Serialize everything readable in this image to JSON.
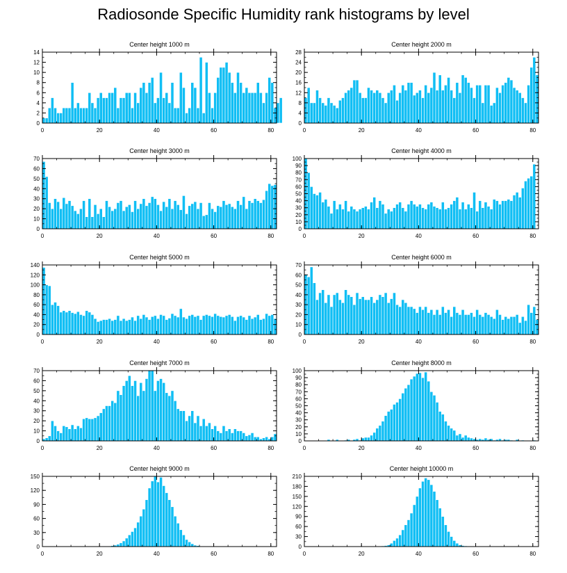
{
  "title": "Radiosonde Specific Humidity rank histograms by level",
  "colors": {
    "bar": "#10bef4",
    "axis": "#000000"
  },
  "chart_data": [
    {
      "type": "bar",
      "title": "Center height 1000 m",
      "xlim": [
        0,
        82
      ],
      "ylim": [
        0,
        14
      ],
      "xticks": [
        0,
        20,
        40,
        60,
        80
      ],
      "yticks": [
        0,
        2,
        4,
        6,
        8,
        10,
        12,
        14
      ],
      "values": [
        1,
        1,
        3,
        5,
        3,
        2,
        2,
        3,
        3,
        3,
        8,
        3,
        4,
        3,
        3,
        3,
        6,
        4,
        3,
        5,
        6,
        5,
        5,
        6,
        6,
        7,
        3,
        5,
        5,
        6,
        6,
        3,
        6,
        4,
        7,
        8,
        6,
        8,
        9,
        4,
        5,
        10,
        5,
        6,
        4,
        8,
        3,
        3,
        10,
        7,
        2,
        3,
        8,
        7,
        3,
        13,
        2,
        12,
        6,
        3,
        6,
        9,
        11,
        11,
        12,
        10,
        8,
        6,
        10,
        8,
        6,
        7,
        6,
        6,
        6,
        8,
        6,
        4,
        6,
        9,
        8,
        3,
        4,
        5
      ]
    },
    {
      "type": "bar",
      "title": "Center height 2000 m",
      "xlim": [
        0,
        82
      ],
      "ylim": [
        0,
        28
      ],
      "xticks": [
        0,
        20,
        40,
        60,
        80
      ],
      "yticks": [
        0,
        4,
        8,
        12,
        16,
        20,
        24,
        28
      ],
      "values": [
        10,
        14,
        8,
        8,
        13,
        10,
        8,
        7,
        10,
        8,
        7,
        6,
        9,
        10,
        12,
        13,
        14,
        17,
        17,
        12,
        10,
        10,
        14,
        13,
        12,
        13,
        12,
        10,
        8,
        12,
        13,
        15,
        9,
        12,
        15,
        13,
        16,
        16,
        11,
        12,
        13,
        10,
        15,
        12,
        14,
        20,
        13,
        19,
        13,
        15,
        18,
        13,
        10,
        16,
        12,
        19,
        18,
        16,
        14,
        10,
        15,
        15,
        8,
        15,
        15,
        7,
        8,
        14,
        12,
        15,
        16,
        18,
        17,
        14,
        13,
        12,
        10,
        8,
        15,
        22,
        26,
        19
      ]
    },
    {
      "type": "bar",
      "title": "Center height 3000 m",
      "xlim": [
        0,
        82
      ],
      "ylim": [
        0,
        70
      ],
      "xticks": [
        0,
        20,
        40,
        60,
        80
      ],
      "yticks": [
        0,
        10,
        20,
        30,
        40,
        50,
        60,
        70
      ],
      "values": [
        67,
        52,
        26,
        20,
        30,
        27,
        20,
        31,
        25,
        28,
        23,
        18,
        15,
        20,
        28,
        12,
        30,
        12,
        24,
        15,
        20,
        12,
        28,
        22,
        18,
        20,
        26,
        28,
        18,
        22,
        24,
        17,
        28,
        20,
        25,
        30,
        23,
        26,
        32,
        30,
        24,
        18,
        27,
        22,
        30,
        20,
        28,
        24,
        19,
        33,
        15,
        23,
        25,
        27,
        20,
        26,
        13,
        14,
        26,
        20,
        17,
        23,
        22,
        28,
        24,
        25,
        22,
        20,
        28,
        24,
        32,
        20,
        28,
        26,
        30,
        28,
        26,
        29,
        38,
        45,
        43,
        44
      ]
    },
    {
      "type": "bar",
      "title": "Center height 4000 m",
      "xlim": [
        0,
        82
      ],
      "ylim": [
        0,
        100
      ],
      "xticks": [
        0,
        20,
        40,
        60,
        80
      ],
      "yticks": [
        0,
        10,
        20,
        30,
        40,
        50,
        60,
        70,
        80,
        90,
        100
      ],
      "values": [
        100,
        80,
        60,
        50,
        48,
        52,
        38,
        42,
        32,
        22,
        40,
        28,
        35,
        28,
        40,
        25,
        32,
        28,
        25,
        28,
        30,
        32,
        28,
        38,
        45,
        30,
        40,
        35,
        22,
        28,
        25,
        30,
        35,
        38,
        30,
        25,
        35,
        40,
        35,
        32,
        35,
        30,
        28,
        35,
        38,
        32,
        30,
        28,
        38,
        28,
        30,
        35,
        40,
        45,
        28,
        38,
        28,
        35,
        30,
        52,
        25,
        40,
        30,
        38,
        32,
        28,
        42,
        40,
        35,
        40,
        40,
        42,
        40,
        48,
        52,
        45,
        58,
        68,
        72,
        75,
        92
      ]
    },
    {
      "type": "bar",
      "title": "Center height 5000 m",
      "xlim": [
        0,
        82
      ],
      "ylim": [
        0,
        140
      ],
      "xticks": [
        0,
        20,
        40,
        60,
        80
      ],
      "yticks": [
        0,
        20,
        40,
        60,
        80,
        100,
        120,
        140
      ],
      "values": [
        135,
        100,
        98,
        60,
        65,
        58,
        45,
        48,
        45,
        48,
        44,
        42,
        46,
        40,
        38,
        48,
        45,
        40,
        32,
        26,
        28,
        30,
        30,
        32,
        28,
        30,
        38,
        28,
        32,
        28,
        30,
        35,
        28,
        38,
        32,
        40,
        35,
        30,
        36,
        38,
        32,
        40,
        38,
        30,
        33,
        42,
        38,
        35,
        52,
        35,
        32,
        38,
        40,
        36,
        38,
        30,
        38,
        40,
        38,
        36,
        42,
        38,
        36,
        35,
        38,
        40,
        36,
        28,
        36,
        38,
        35,
        30,
        38,
        32,
        35,
        40,
        30,
        32,
        42,
        38,
        40,
        32
      ]
    },
    {
      "type": "bar",
      "title": "Center height 6000 m",
      "xlim": [
        0,
        82
      ],
      "ylim": [
        0,
        70
      ],
      "xticks": [
        0,
        20,
        40,
        60,
        80
      ],
      "yticks": [
        0,
        10,
        20,
        30,
        40,
        50,
        60,
        70
      ],
      "values": [
        60,
        58,
        68,
        52,
        35,
        42,
        45,
        32,
        40,
        28,
        40,
        42,
        35,
        32,
        45,
        40,
        38,
        30,
        42,
        36,
        38,
        35,
        35,
        38,
        32,
        35,
        40,
        38,
        42,
        32,
        36,
        42,
        30,
        28,
        35,
        32,
        28,
        28,
        26,
        22,
        28,
        25,
        28,
        22,
        25,
        20,
        25,
        20,
        28,
        22,
        25,
        18,
        28,
        22,
        20,
        25,
        20,
        20,
        22,
        18,
        25,
        20,
        18,
        22,
        20,
        18,
        16,
        25,
        20,
        15,
        18,
        16,
        18,
        18,
        20,
        12,
        18,
        14,
        30,
        22,
        28,
        15
      ]
    },
    {
      "type": "bar",
      "title": "Center height 7000 m",
      "xlim": [
        0,
        82
      ],
      "ylim": [
        0,
        70
      ],
      "xticks": [
        0,
        20,
        40,
        60,
        80
      ],
      "yticks": [
        0,
        10,
        20,
        30,
        40,
        50,
        60,
        70
      ],
      "values": [
        2,
        3,
        5,
        20,
        15,
        10,
        8,
        15,
        14,
        12,
        16,
        12,
        15,
        13,
        22,
        23,
        22,
        22,
        23,
        25,
        28,
        32,
        35,
        35,
        40,
        38,
        50,
        46,
        55,
        60,
        65,
        55,
        60,
        45,
        58,
        50,
        62,
        70,
        70,
        50,
        60,
        62,
        58,
        48,
        45,
        50,
        40,
        32,
        30,
        30,
        20,
        25,
        30,
        18,
        25,
        15,
        22,
        15,
        18,
        12,
        15,
        10,
        8,
        15,
        10,
        12,
        8,
        12,
        10,
        10,
        8,
        5,
        6,
        8,
        4,
        4,
        2,
        3,
        4,
        2,
        4,
        7
      ]
    },
    {
      "type": "bar",
      "title": "Center height 8000 m",
      "xlim": [
        0,
        82
      ],
      "ylim": [
        0,
        100
      ],
      "xticks": [
        0,
        20,
        40,
        60,
        80
      ],
      "yticks": [
        0,
        10,
        20,
        30,
        40,
        50,
        60,
        70,
        80,
        90,
        100
      ],
      "values": [
        0,
        0,
        0,
        0,
        0,
        0,
        0,
        0,
        2,
        0,
        0,
        2,
        0,
        0,
        1,
        2,
        0,
        2,
        3,
        1,
        4,
        5,
        5,
        8,
        12,
        18,
        22,
        28,
        36,
        42,
        45,
        52,
        55,
        60,
        68,
        75,
        80,
        88,
        92,
        96,
        97,
        90,
        98,
        85,
        70,
        65,
        55,
        42,
        38,
        28,
        22,
        18,
        15,
        8,
        10,
        5,
        8,
        5,
        4,
        3,
        2,
        3,
        2,
        4,
        2,
        3,
        1,
        2,
        3,
        1,
        2,
        2,
        1,
        0,
        2,
        0,
        1,
        0,
        0,
        0,
        1,
        0
      ]
    },
    {
      "type": "bar",
      "title": "Center height 9000 m",
      "xlim": [
        0,
        82
      ],
      "ylim": [
        0,
        150
      ],
      "xticks": [
        0,
        20,
        40,
        60,
        80
      ],
      "yticks": [
        0,
        30,
        60,
        90,
        120,
        150
      ],
      "values": [
        0,
        0,
        0,
        0,
        0,
        0,
        0,
        0,
        0,
        0,
        0,
        0,
        0,
        0,
        0,
        0,
        0,
        0,
        0,
        0,
        0,
        1,
        0,
        1,
        2,
        3,
        5,
        8,
        12,
        18,
        25,
        32,
        40,
        52,
        65,
        80,
        100,
        125,
        140,
        150,
        138,
        148,
        130,
        115,
        100,
        85,
        65,
        50,
        36,
        25,
        15,
        10,
        6,
        3,
        2,
        1,
        1,
        0,
        0,
        0,
        0,
        0,
        0,
        0,
        0,
        0,
        0,
        0,
        0,
        0,
        0,
        0,
        0,
        0,
        0,
        0,
        0,
        0,
        0,
        0,
        0,
        0
      ]
    },
    {
      "type": "bar",
      "title": "Center height 10000 m",
      "xlim": [
        0,
        82
      ],
      "ylim": [
        0,
        210
      ],
      "xticks": [
        0,
        20,
        40,
        60,
        80
      ],
      "yticks": [
        0,
        30,
        60,
        90,
        120,
        150,
        180,
        210
      ],
      "values": [
        0,
        0,
        0,
        0,
        0,
        0,
        0,
        0,
        0,
        0,
        0,
        0,
        0,
        0,
        0,
        0,
        0,
        0,
        0,
        0,
        0,
        0,
        0,
        0,
        0,
        0,
        1,
        2,
        3,
        5,
        10,
        18,
        25,
        35,
        50,
        65,
        80,
        100,
        125,
        150,
        175,
        195,
        205,
        200,
        185,
        165,
        140,
        115,
        90,
        65,
        45,
        30,
        18,
        10,
        5,
        3,
        2,
        1,
        0,
        0,
        0,
        0,
        0,
        0,
        0,
        0,
        0,
        0,
        0,
        0,
        0,
        0,
        0,
        0,
        0,
        0,
        0,
        0,
        0,
        0,
        0,
        0
      ]
    }
  ]
}
